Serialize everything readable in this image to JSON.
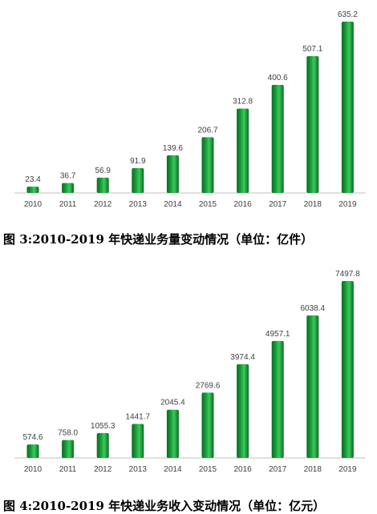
{
  "chart_data": [
    {
      "type": "bar",
      "title": "图 3:2010-2019 年快递业务量变动情况（单位：亿件）",
      "categories": [
        "2010",
        "2011",
        "2012",
        "2013",
        "2014",
        "2015",
        "2016",
        "2017",
        "2018",
        "2019"
      ],
      "series": [
        {
          "values": [
            23.4,
            36.7,
            56.9,
            91.9,
            139.6,
            206.7,
            312.8,
            400.6,
            507.1,
            635.2
          ],
          "labels": [
            "23.4",
            "36.7",
            "56.9",
            "91.9",
            "139.6",
            "206.7",
            "312.8",
            "400.6",
            "507.1",
            "635.2"
          ]
        }
      ],
      "ylim": [
        0,
        635.2
      ],
      "grid": false,
      "legend": "none",
      "bar_color": "#1a9e3a"
    },
    {
      "type": "bar",
      "title": "图 4:2010-2019 年快递业务收入变动情况（单位：亿元）",
      "categories": [
        "2010",
        "2011",
        "2012",
        "2013",
        "2014",
        "2015",
        "2016",
        "2017",
        "2018",
        "2019"
      ],
      "series": [
        {
          "values": [
            574.6,
            758.0,
            1055.3,
            1441.7,
            2045.4,
            2769.6,
            3974.4,
            4957.1,
            6038.4,
            7497.8
          ],
          "labels": [
            "574.6",
            "758.0",
            "1055.3",
            "1441.7",
            "2045.4",
            "2769.6",
            "3974.4",
            "4957.1",
            "6038.4",
            "7497.8"
          ]
        }
      ],
      "ylim": [
        0,
        7497.8
      ],
      "grid": false,
      "legend": "none",
      "bar_color": "#1a9e3a"
    }
  ]
}
